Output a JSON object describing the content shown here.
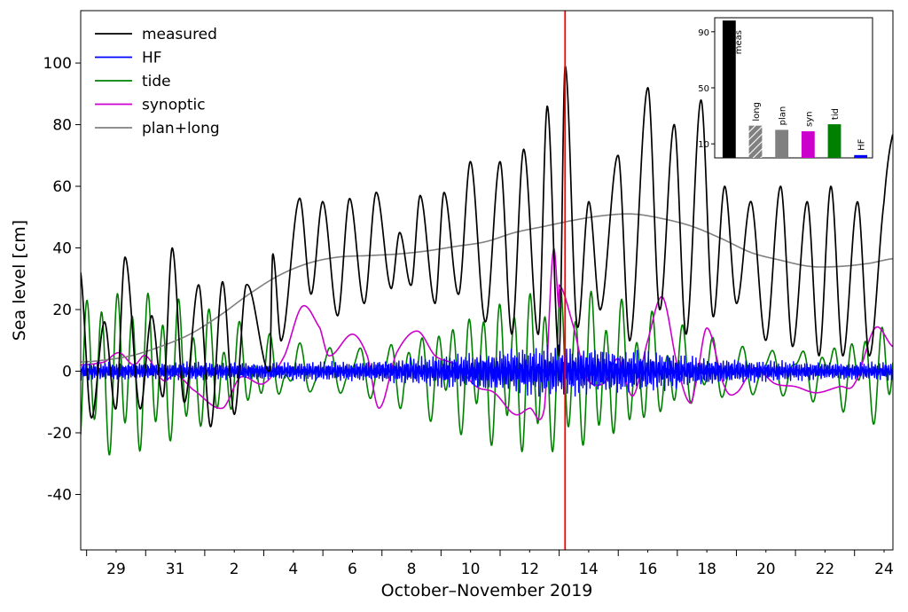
{
  "chart_data": [
    {
      "type": "line",
      "xlabel": "October–November 2019",
      "ylabel": "Sea level [cm]",
      "xlim": [
        27.8,
        55.3
      ],
      "ylim": [
        -58,
        117
      ],
      "yticks": [
        -40,
        -20,
        0,
        20,
        40,
        60,
        80,
        100
      ],
      "xtick_labels": [
        {
          "x": 29,
          "label": "29"
        },
        {
          "x": 31,
          "label": "31"
        },
        {
          "x": 33,
          "label": "2"
        },
        {
          "x": 35,
          "label": "4"
        },
        {
          "x": 37,
          "label": "6"
        },
        {
          "x": 39,
          "label": "8"
        },
        {
          "x": 41,
          "label": "10"
        },
        {
          "x": 43,
          "label": "12"
        },
        {
          "x": 45,
          "label": "14"
        },
        {
          "x": 47,
          "label": "16"
        },
        {
          "x": 49,
          "label": "18"
        },
        {
          "x": 51,
          "label": "20"
        },
        {
          "x": 53,
          "label": "22"
        },
        {
          "x": 55,
          "label": "24"
        }
      ],
      "x_units": "day of October 2019 (32 = 1 November)",
      "minor_tick_step_days": 1,
      "event_marker_x": 44.2,
      "legend_position": "upper-left",
      "series": [
        {
          "name": "measured",
          "color": "#000000",
          "anchors": [
            [
              27.8,
              32
            ],
            [
              28.15,
              -15
            ],
            [
              28.6,
              16
            ],
            [
              29.0,
              -12
            ],
            [
              29.3,
              37
            ],
            [
              29.8,
              -12
            ],
            [
              30.2,
              18
            ],
            [
              30.6,
              -8
            ],
            [
              30.9,
              40
            ],
            [
              31.3,
              -10
            ],
            [
              31.8,
              28
            ],
            [
              32.2,
              -18
            ],
            [
              32.6,
              29
            ],
            [
              33.0,
              -14
            ],
            [
              33.4,
              28
            ],
            [
              34.2,
              0
            ],
            [
              34.3,
              38
            ],
            [
              34.6,
              10
            ],
            [
              35.2,
              56
            ],
            [
              35.6,
              25
            ],
            [
              36.0,
              55
            ],
            [
              36.5,
              18
            ],
            [
              36.9,
              56
            ],
            [
              37.4,
              22
            ],
            [
              37.8,
              58
            ],
            [
              38.3,
              27
            ],
            [
              38.6,
              45
            ],
            [
              39.0,
              28
            ],
            [
              39.3,
              57
            ],
            [
              39.8,
              22
            ],
            [
              40.1,
              58
            ],
            [
              40.6,
              25
            ],
            [
              41.0,
              68
            ],
            [
              41.5,
              16
            ],
            [
              42.0,
              68
            ],
            [
              42.4,
              12
            ],
            [
              42.8,
              72
            ],
            [
              43.3,
              12
            ],
            [
              43.6,
              86
            ],
            [
              44.0,
              5
            ],
            [
              44.2,
              99
            ],
            [
              44.6,
              15
            ],
            [
              45.0,
              55
            ],
            [
              45.4,
              20
            ],
            [
              46.0,
              70
            ],
            [
              46.4,
              10
            ],
            [
              47.0,
              92
            ],
            [
              47.4,
              20
            ],
            [
              47.9,
              80
            ],
            [
              48.3,
              12
            ],
            [
              48.8,
              88
            ],
            [
              49.2,
              18
            ],
            [
              49.6,
              60
            ],
            [
              50.0,
              22
            ],
            [
              50.5,
              55
            ],
            [
              51.0,
              10
            ],
            [
              51.5,
              60
            ],
            [
              51.9,
              8
            ],
            [
              52.4,
              55
            ],
            [
              52.8,
              5
            ],
            [
              53.2,
              60
            ],
            [
              53.6,
              5
            ],
            [
              54.1,
              55
            ],
            [
              54.5,
              5
            ],
            [
              55.0,
              55
            ],
            [
              55.3,
              77
            ]
          ]
        },
        {
          "name": "HF",
          "color": "#0000ff",
          "amplitude_cm": 15
        },
        {
          "name": "tide",
          "color": "#008000",
          "amplitude_cm": 28
        },
        {
          "name": "synoptic",
          "color": "#cc00cc",
          "anchors": [
            [
              27.8,
              2
            ],
            [
              28.6,
              3
            ],
            [
              29.1,
              6
            ],
            [
              29.6,
              2
            ],
            [
              30.0,
              5
            ],
            [
              30.6,
              -3
            ],
            [
              31.0,
              -1
            ],
            [
              31.6,
              -6
            ],
            [
              32.6,
              -12
            ],
            [
              33.2,
              -2
            ],
            [
              34.0,
              -4
            ],
            [
              34.7,
              5
            ],
            [
              35.3,
              21
            ],
            [
              35.9,
              14
            ],
            [
              36.2,
              5
            ],
            [
              37.0,
              12
            ],
            [
              37.5,
              5
            ],
            [
              37.9,
              -12
            ],
            [
              38.5,
              6
            ],
            [
              39.2,
              13
            ],
            [
              39.8,
              5
            ],
            [
              40.5,
              2
            ],
            [
              41.2,
              -5
            ],
            [
              41.8,
              -7
            ],
            [
              42.5,
              -14
            ],
            [
              43.0,
              -12
            ],
            [
              43.5,
              -12
            ],
            [
              44.0,
              20
            ],
            [
              43.8,
              39
            ],
            [
              44.0,
              28
            ],
            [
              44.5,
              14
            ],
            [
              44.9,
              -2
            ],
            [
              45.5,
              -4
            ],
            [
              46.0,
              4
            ],
            [
              46.5,
              -8
            ],
            [
              47.0,
              10
            ],
            [
              47.5,
              24
            ],
            [
              48.0,
              2
            ],
            [
              48.4,
              -10
            ],
            [
              48.6,
              -5
            ],
            [
              49.0,
              14
            ],
            [
              49.6,
              -5
            ],
            [
              50.0,
              -7
            ],
            [
              50.6,
              1
            ],
            [
              51.3,
              -4
            ],
            [
              52.0,
              -5
            ],
            [
              52.7,
              -7
            ],
            [
              53.5,
              -5
            ],
            [
              54.0,
              -4
            ],
            [
              54.7,
              14
            ],
            [
              55.3,
              8
            ]
          ]
        },
        {
          "name": "plan+long",
          "color": "#808080",
          "anchors": [
            [
              27.8,
              3
            ],
            [
              28.5,
              3.5
            ],
            [
              29.5,
              5
            ],
            [
              30.5,
              8
            ],
            [
              31.5,
              12
            ],
            [
              32.5,
              18
            ],
            [
              33.5,
              25
            ],
            [
              34.5,
              31
            ],
            [
              35.5,
              35
            ],
            [
              36.5,
              37
            ],
            [
              37.5,
              37.5
            ],
            [
              38.5,
              38
            ],
            [
              39.5,
              39
            ],
            [
              40.5,
              40.5
            ],
            [
              41.5,
              42
            ],
            [
              42.5,
              45
            ],
            [
              43.5,
              47
            ],
            [
              44.5,
              49
            ],
            [
              45.5,
              50.5
            ],
            [
              46.5,
              51
            ],
            [
              47.5,
              49.5
            ],
            [
              48.5,
              47
            ],
            [
              49.5,
              43
            ],
            [
              50.5,
              38.5
            ],
            [
              51.5,
              36
            ],
            [
              52.5,
              34
            ],
            [
              53.5,
              34
            ],
            [
              54.5,
              35
            ],
            [
              55.3,
              36.5
            ]
          ]
        }
      ]
    },
    {
      "type": "bar",
      "position": "inset-upper-right",
      "yticks": [
        10,
        50,
        90
      ],
      "ylim": [
        0,
        100
      ],
      "categories": [
        "meas",
        "long",
        "plan",
        "syn",
        "tid",
        "HF"
      ],
      "values": [
        98,
        23,
        20,
        19,
        24,
        2
      ],
      "colors": [
        "#000000",
        "#808080",
        "#808080",
        "#cc00cc",
        "#008000",
        "#0000ff"
      ],
      "hatched": [
        false,
        true,
        false,
        false,
        false,
        false
      ]
    }
  ]
}
